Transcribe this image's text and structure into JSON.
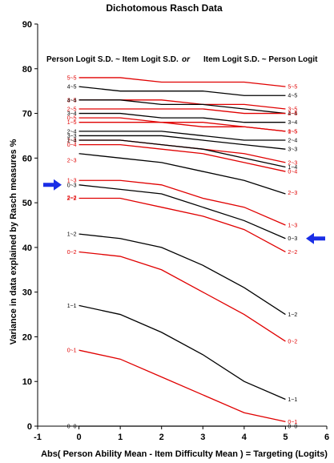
{
  "chart_data": {
    "type": "line",
    "title": "Dichotomous Rasch Data",
    "subtitle": {
      "left": "Person Logit S.D. ~ Item Logit S.D.",
      "middle": "or",
      "right": "Item Logit S.D. ~ Person Logit"
    },
    "xlabel": "Abs( Person Ability Mean - Item Difficulty Mean ) = Targeting (Logits)",
    "ylabel": "Variance in data explained by Rasch measures %",
    "xlim": [
      -1,
      6
    ],
    "ylim": [
      0,
      90
    ],
    "xticks": [
      "-1",
      "0",
      "1",
      "2",
      "3",
      "4",
      "5",
      "6"
    ],
    "yticks": [
      "0",
      "10",
      "20",
      "30",
      "40",
      "50",
      "60",
      "70",
      "80",
      "90"
    ],
    "x": [
      0,
      1,
      2,
      3,
      4,
      5
    ],
    "colors": {
      "black": "#000000",
      "red": "#e00000",
      "arrow": "#1a2ee6"
    },
    "series": [
      {
        "name": "5~5",
        "color": "red",
        "values": [
          78,
          78,
          77,
          77,
          77,
          76
        ],
        "left_label": "5~5",
        "right_label": "5~5"
      },
      {
        "name": "4~5",
        "color": "black",
        "values": [
          76,
          75,
          75,
          75,
          74,
          74
        ],
        "left_label": "4~5",
        "right_label": "4~5"
      },
      {
        "name": "3~5",
        "color": "red",
        "values": [
          73,
          73,
          73,
          72,
          72,
          71
        ],
        "left_label": "3~5",
        "right_label": "3~5"
      },
      {
        "name": "4~4",
        "color": "black",
        "values": [
          73,
          73,
          72,
          72,
          71,
          70
        ],
        "left_label": "4~4",
        "right_label": "4~4"
      },
      {
        "name": "2~5",
        "color": "red",
        "values": [
          71,
          71,
          71,
          71,
          70,
          70
        ],
        "left_label": "2~5",
        "right_label": "2~5"
      },
      {
        "name": "3~4",
        "color": "black",
        "values": [
          70,
          70,
          69,
          69,
          68,
          68
        ],
        "left_label": "3~4",
        "right_label": "3~4"
      },
      {
        "name": "0~5",
        "color": "red",
        "values": [
          69,
          69,
          68,
          68,
          67,
          66
        ],
        "left_label": "0~5",
        "right_label": "0~5"
      },
      {
        "name": "1~5",
        "color": "red",
        "values": [
          68,
          68,
          68,
          67,
          67,
          66
        ],
        "left_label": "1~5",
        "right_label": "1~5"
      },
      {
        "name": "2~4",
        "color": "black",
        "values": [
          66,
          66,
          66,
          65,
          64,
          64
        ],
        "left_label": "2~4",
        "right_label": "2~4"
      },
      {
        "name": "3~3",
        "color": "black",
        "values": [
          65,
          65,
          65,
          64,
          63,
          62
        ],
        "left_label": "3~3",
        "right_label": "3~3"
      },
      {
        "name": "2~3",
        "color": "red",
        "values": [
          64,
          64,
          63,
          62,
          61,
          59
        ],
        "left_label": "2~3",
        "right_label": "2~3"
      },
      {
        "name": "1~4",
        "color": "black",
        "values": [
          64,
          64,
          63,
          62,
          60,
          58
        ],
        "left_label": "1~4",
        "right_label": "1~4"
      },
      {
        "name": "0~4",
        "color": "red",
        "values": [
          63,
          63,
          62,
          61,
          59,
          57
        ],
        "left_label": "0~4",
        "right_label": "0~4"
      },
      {
        "name": "2~2",
        "color": "black",
        "values": [
          61,
          60,
          59,
          57,
          55,
          52
        ],
        "left_label": "",
        "right_label": ""
      },
      {
        "name": "1~3",
        "color": "red",
        "values": [
          55,
          55,
          54,
          51,
          49,
          45
        ],
        "left_label": "1~3",
        "right_label": "1~3"
      },
      {
        "name": "0~3",
        "color": "black",
        "values": [
          54,
          53,
          52,
          49,
          46,
          42
        ],
        "left_label": "0~3",
        "right_label": "0~3"
      },
      {
        "name": "2~2 (red)",
        "color": "red",
        "values": [
          51,
          51,
          49,
          47,
          44,
          39
        ],
        "left_label": "2~2",
        "right_label": "2~2"
      },
      {
        "name": "1~2",
        "color": "black",
        "values": [
          43,
          42,
          40,
          36,
          31,
          25
        ],
        "left_label": "1~2",
        "right_label": "1~2"
      },
      {
        "name": "0~2",
        "color": "red",
        "values": [
          39,
          38,
          35,
          30,
          25,
          19
        ],
        "left_label": "0~2",
        "right_label": "0~2"
      },
      {
        "name": "1~1",
        "color": "black",
        "values": [
          27,
          25,
          21,
          16,
          10,
          6
        ],
        "left_label": "1~1",
        "right_label": "1~1"
      },
      {
        "name": "0~1",
        "color": "red",
        "values": [
          17,
          15,
          11,
          7,
          3,
          1
        ],
        "left_label": "0~1",
        "right_label": "0~1"
      },
      {
        "name": "0~0",
        "color": "black",
        "values": [
          0,
          0,
          0,
          0,
          0,
          0
        ],
        "left_label": "0~0",
        "right_label": "0~0"
      }
    ],
    "extra_labels": [
      {
        "text": "2~3",
        "side": "left",
        "y": 59.5,
        "color": "red"
      },
      {
        "text": "2~3",
        "side": "right",
        "y": 52.3,
        "color": "red"
      },
      {
        "text": "2~2",
        "side": "left",
        "y": 51.2,
        "color": "red"
      }
    ],
    "arrows": [
      {
        "side": "left",
        "y": 54
      },
      {
        "side": "right",
        "y": 42
      }
    ],
    "grid": false,
    "legend": "none"
  }
}
